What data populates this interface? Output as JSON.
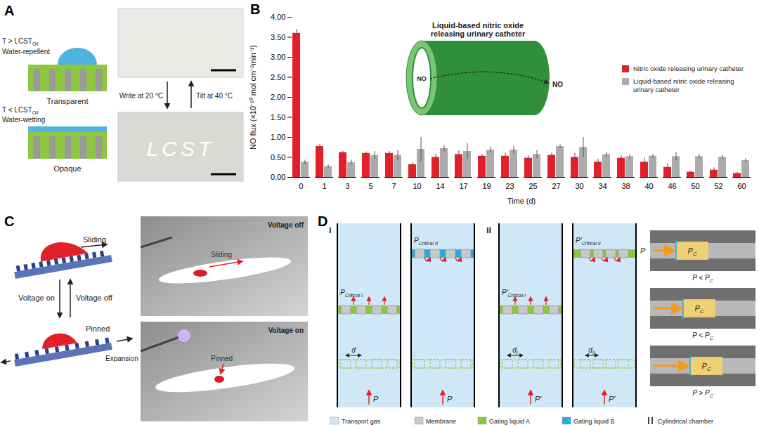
{
  "chart_data": {
    "type": "bar",
    "xlabel": "Time (d)",
    "ylabel": "NO flux (×10⁻¹⁰ mol cm⁻²min⁻¹)",
    "categories": [
      "0",
      "1",
      "3",
      "5",
      "7",
      "10",
      "14",
      "17",
      "19",
      "23",
      "25",
      "27",
      "30",
      "34",
      "38",
      "40",
      "46",
      "50",
      "52",
      "60"
    ],
    "series": [
      {
        "name": "Nitric oxide releasing urinary catheter",
        "color": "#e3202a",
        "values": [
          3.6,
          0.77,
          0.62,
          0.6,
          0.6,
          0.32,
          0.5,
          0.57,
          0.53,
          0.53,
          0.48,
          0.55,
          0.5,
          0.38,
          0.48,
          0.38,
          0.25,
          0.13,
          0.18,
          0.1
        ],
        "errors": [
          0.1,
          0.05,
          0.03,
          0.04,
          0.05,
          0.04,
          0.08,
          0.1,
          0.05,
          0.08,
          0.06,
          0.06,
          0.1,
          0.07,
          0.07,
          0.1,
          0.1,
          0.03,
          0.06,
          0.03
        ]
      },
      {
        "name": "Liquid-based nitric oxide releasing urinary catheter",
        "color": "#ababab",
        "values": [
          0.38,
          0.27,
          0.37,
          0.55,
          0.55,
          0.7,
          0.72,
          0.65,
          0.68,
          0.68,
          0.57,
          0.77,
          0.75,
          0.57,
          0.52,
          0.53,
          0.52,
          0.52,
          0.5,
          0.42
        ],
        "errors": [
          0.05,
          0.05,
          0.06,
          0.1,
          0.12,
          0.3,
          0.08,
          0.2,
          0.08,
          0.1,
          0.1,
          0.05,
          0.25,
          0.05,
          0.05,
          0.05,
          0.1,
          0.05,
          0.05,
          0.05
        ]
      }
    ],
    "ylim": [
      0,
      4
    ],
    "yticks": [
      {
        "value": 0,
        "label": "0.00"
      },
      {
        "value": 0.5,
        "label": "0.50"
      },
      {
        "value": 1,
        "label": "1.00"
      },
      {
        "value": 1.5,
        "label": "1.50"
      },
      {
        "value": 2,
        "label": "2.00"
      },
      {
        "value": 2.5,
        "label": "2.50"
      },
      {
        "value": 3,
        "label": "3.00"
      },
      {
        "value": 3.5,
        "label": "3.50"
      },
      {
        "value": 4,
        "label": "4.00"
      }
    ],
    "grid": false,
    "legend": "right"
  },
  "diagram": {
    "A": {
      "label": "A",
      "top_state": {
        "condition": [
          "T > ",
          {
            "main": "LCST",
            "sub": "Oil"
          }
        ],
        "wetting": "Water-repellent",
        "appearance": "Transparent"
      },
      "bottom_state": {
        "condition": [
          "T < ",
          {
            "main": "LCST",
            "sub": "Oil"
          }
        ],
        "wetting": "Water-wetting",
        "appearance": "Opaque"
      },
      "arrow_down": "Write at 20 °C",
      "arrow_up": "Tilt at 40 °C",
      "photo_text": "LCST"
    },
    "B": {
      "label": "B",
      "inset_title": [
        "Liquid-based nitric oxide",
        "releasing urinary catheter"
      ],
      "inset_gas": "NO"
    },
    "C": {
      "label": "C",
      "top_motion": "Sliding",
      "bottom_motion": "Pinned",
      "bottom_strain": "Expansion",
      "arrow_down": "Voltage on",
      "arrow_up": "Voltage off",
      "photo_top": {
        "title": "Voltage off",
        "label": "Sliding"
      },
      "photo_bottom": {
        "title": "Voltage on",
        "label": "Pinned"
      }
    },
    "D": {
      "label": "D",
      "i": {
        "label": "i",
        "pressure": "P",
        "critical_1": {
          "main": "P",
          "sub": "Critical I"
        },
        "critical_2": {
          "main": "P",
          "sub": "Critical II"
        },
        "spacing": "d"
      },
      "ii": {
        "label": "ii",
        "pressure": "P′",
        "critical_1": {
          "main": "P′",
          "sub": "Critical I"
        },
        "critical_2": {
          "main": "P′",
          "sub": "Critical II"
        },
        "spacing_1": {
          "main": "d",
          "sub": "I"
        },
        "spacing_2": {
          "main": "d",
          "sub": "II"
        }
      },
      "legend": [
        {
          "name": "Transport gas",
          "color": "#cfe8f7"
        },
        {
          "name": "Membrane",
          "color": "#c8c8c8"
        },
        {
          "name": "Gating liquid A",
          "color": "#8dc63f"
        },
        {
          "name": "Gating liquid B",
          "color": "#29abe2"
        },
        {
          "name": "Cylindrical chamber",
          "color": "#000000"
        }
      ],
      "photos": [
        {
          "pressure": "P",
          "plug": {
            "main": "P",
            "sub": "C"
          },
          "caption": [
            "P < ",
            {
              "main": "P",
              "sub": "C"
            }
          ]
        },
        {
          "plug": {
            "main": "P",
            "sub": "C"
          },
          "caption": [
            "P < ",
            {
              "main": "P",
              "sub": "C"
            }
          ]
        },
        {
          "plug": {
            "main": "P",
            "sub": "C"
          },
          "caption": [
            "P > ",
            {
              "main": "P",
              "sub": "C"
            }
          ]
        }
      ]
    }
  }
}
